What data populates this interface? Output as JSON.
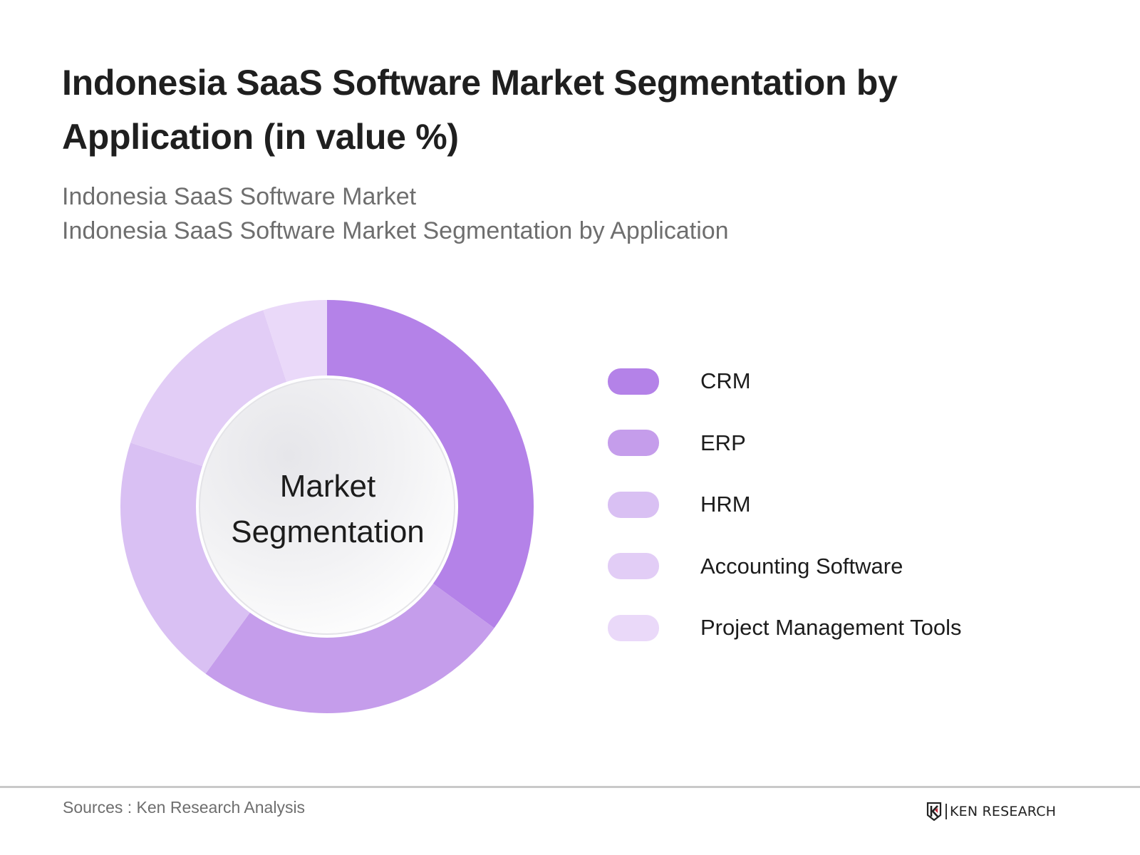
{
  "header": {
    "title": "Indonesia SaaS Software Market Segmentation by Application (in value %)",
    "subtitle_lines": [
      "Indonesia SaaS Software Market",
      "Indonesia SaaS Software Market Segmentation by Application"
    ]
  },
  "chart": {
    "center_label_lines": [
      "Market",
      "Segmentation"
    ]
  },
  "legend": {
    "items": [
      {
        "label": "CRM",
        "color": "#b482e8"
      },
      {
        "label": "ERP",
        "color": "#c59deb"
      },
      {
        "label": "HRM",
        "color": "#d9c0f3"
      },
      {
        "label": "Accounting Software",
        "color": "#e2cdf6"
      },
      {
        "label": "Project Management Tools",
        "color": "#ead9f9"
      }
    ]
  },
  "footer": {
    "source": "Sources : Ken Research Analysis",
    "logo_text": "KEN RESEARCH"
  },
  "chart_data": {
    "type": "pie",
    "variant": "donut",
    "title": "Indonesia SaaS Software Market Segmentation by Application (in value %)",
    "subtitle": "Indonesia SaaS Software Market Segmentation by Application",
    "center_label": "Market Segmentation",
    "categories": [
      "CRM",
      "ERP",
      "HRM",
      "Accounting Software",
      "Project Management Tools"
    ],
    "values": [
      35,
      25,
      20,
      15,
      5
    ],
    "unit": "%",
    "colors": [
      "#b482e8",
      "#c59deb",
      "#d9c0f3",
      "#e2cdf6",
      "#ead9f9"
    ],
    "start_angle": "12 o'clock, clockwise",
    "legend_position": "right",
    "data_labels": false,
    "source": "Ken Research Analysis"
  }
}
